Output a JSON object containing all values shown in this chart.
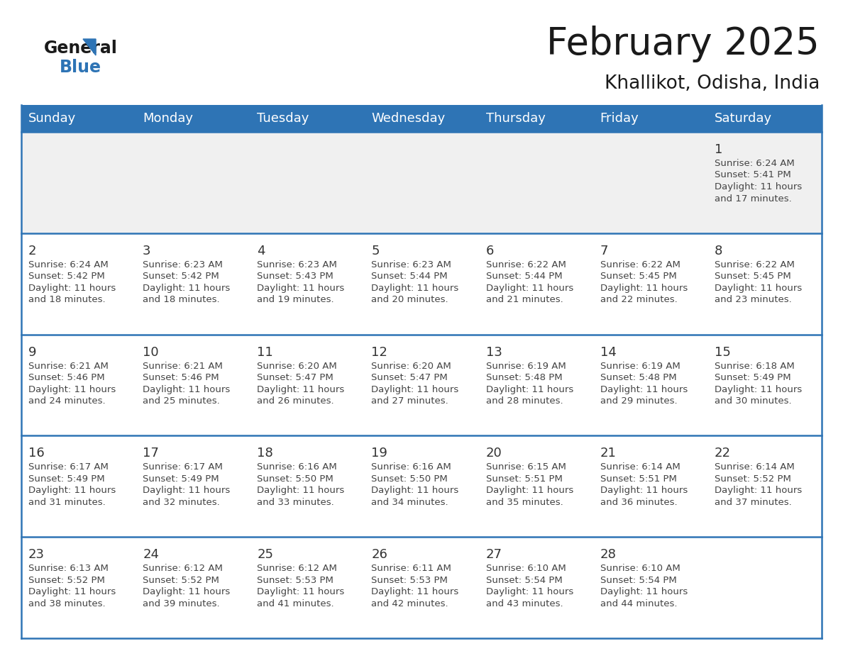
{
  "title": "February 2025",
  "subtitle": "Khallikot, Odisha, India",
  "header_bg_color": "#2E74B5",
  "header_text_color": "#FFFFFF",
  "day_names": [
    "Sunday",
    "Monday",
    "Tuesday",
    "Wednesday",
    "Thursday",
    "Friday",
    "Saturday"
  ],
  "bg_color": "#FFFFFF",
  "cell_bg_color": "#FFFFFF",
  "first_row_bg": "#F0F0F0",
  "separator_color": "#2E74B5",
  "date_color": "#333333",
  "text_color": "#444444",
  "title_color": "#1a1a1a",
  "logo_black": "#1a1a1a",
  "logo_blue": "#2E74B5",
  "calendar_data": [
    [
      null,
      null,
      null,
      null,
      null,
      null,
      1
    ],
    [
      2,
      3,
      4,
      5,
      6,
      7,
      8
    ],
    [
      9,
      10,
      11,
      12,
      13,
      14,
      15
    ],
    [
      16,
      17,
      18,
      19,
      20,
      21,
      22
    ],
    [
      23,
      24,
      25,
      26,
      27,
      28,
      null
    ]
  ],
  "cell_data": {
    "1": {
      "sunrise": "6:24 AM",
      "sunset": "5:41 PM",
      "daylight_h": "11 hours",
      "daylight_m": "and 17 minutes."
    },
    "2": {
      "sunrise": "6:24 AM",
      "sunset": "5:42 PM",
      "daylight_h": "11 hours",
      "daylight_m": "and 18 minutes."
    },
    "3": {
      "sunrise": "6:23 AM",
      "sunset": "5:42 PM",
      "daylight_h": "11 hours",
      "daylight_m": "and 18 minutes."
    },
    "4": {
      "sunrise": "6:23 AM",
      "sunset": "5:43 PM",
      "daylight_h": "11 hours",
      "daylight_m": "and 19 minutes."
    },
    "5": {
      "sunrise": "6:23 AM",
      "sunset": "5:44 PM",
      "daylight_h": "11 hours",
      "daylight_m": "and 20 minutes."
    },
    "6": {
      "sunrise": "6:22 AM",
      "sunset": "5:44 PM",
      "daylight_h": "11 hours",
      "daylight_m": "and 21 minutes."
    },
    "7": {
      "sunrise": "6:22 AM",
      "sunset": "5:45 PM",
      "daylight_h": "11 hours",
      "daylight_m": "and 22 minutes."
    },
    "8": {
      "sunrise": "6:22 AM",
      "sunset": "5:45 PM",
      "daylight_h": "11 hours",
      "daylight_m": "and 23 minutes."
    },
    "9": {
      "sunrise": "6:21 AM",
      "sunset": "5:46 PM",
      "daylight_h": "11 hours",
      "daylight_m": "and 24 minutes."
    },
    "10": {
      "sunrise": "6:21 AM",
      "sunset": "5:46 PM",
      "daylight_h": "11 hours",
      "daylight_m": "and 25 minutes."
    },
    "11": {
      "sunrise": "6:20 AM",
      "sunset": "5:47 PM",
      "daylight_h": "11 hours",
      "daylight_m": "and 26 minutes."
    },
    "12": {
      "sunrise": "6:20 AM",
      "sunset": "5:47 PM",
      "daylight_h": "11 hours",
      "daylight_m": "and 27 minutes."
    },
    "13": {
      "sunrise": "6:19 AM",
      "sunset": "5:48 PM",
      "daylight_h": "11 hours",
      "daylight_m": "and 28 minutes."
    },
    "14": {
      "sunrise": "6:19 AM",
      "sunset": "5:48 PM",
      "daylight_h": "11 hours",
      "daylight_m": "and 29 minutes."
    },
    "15": {
      "sunrise": "6:18 AM",
      "sunset": "5:49 PM",
      "daylight_h": "11 hours",
      "daylight_m": "and 30 minutes."
    },
    "16": {
      "sunrise": "6:17 AM",
      "sunset": "5:49 PM",
      "daylight_h": "11 hours",
      "daylight_m": "and 31 minutes."
    },
    "17": {
      "sunrise": "6:17 AM",
      "sunset": "5:49 PM",
      "daylight_h": "11 hours",
      "daylight_m": "and 32 minutes."
    },
    "18": {
      "sunrise": "6:16 AM",
      "sunset": "5:50 PM",
      "daylight_h": "11 hours",
      "daylight_m": "and 33 minutes."
    },
    "19": {
      "sunrise": "6:16 AM",
      "sunset": "5:50 PM",
      "daylight_h": "11 hours",
      "daylight_m": "and 34 minutes."
    },
    "20": {
      "sunrise": "6:15 AM",
      "sunset": "5:51 PM",
      "daylight_h": "11 hours",
      "daylight_m": "and 35 minutes."
    },
    "21": {
      "sunrise": "6:14 AM",
      "sunset": "5:51 PM",
      "daylight_h": "11 hours",
      "daylight_m": "and 36 minutes."
    },
    "22": {
      "sunrise": "6:14 AM",
      "sunset": "5:52 PM",
      "daylight_h": "11 hours",
      "daylight_m": "and 37 minutes."
    },
    "23": {
      "sunrise": "6:13 AM",
      "sunset": "5:52 PM",
      "daylight_h": "11 hours",
      "daylight_m": "and 38 minutes."
    },
    "24": {
      "sunrise": "6:12 AM",
      "sunset": "5:52 PM",
      "daylight_h": "11 hours",
      "daylight_m": "and 39 minutes."
    },
    "25": {
      "sunrise": "6:12 AM",
      "sunset": "5:53 PM",
      "daylight_h": "11 hours",
      "daylight_m": "and 41 minutes."
    },
    "26": {
      "sunrise": "6:11 AM",
      "sunset": "5:53 PM",
      "daylight_h": "11 hours",
      "daylight_m": "and 42 minutes."
    },
    "27": {
      "sunrise": "6:10 AM",
      "sunset": "5:54 PM",
      "daylight_h": "11 hours",
      "daylight_m": "and 43 minutes."
    },
    "28": {
      "sunrise": "6:10 AM",
      "sunset": "5:54 PM",
      "daylight_h": "11 hours",
      "daylight_m": "and 44 minutes."
    }
  }
}
